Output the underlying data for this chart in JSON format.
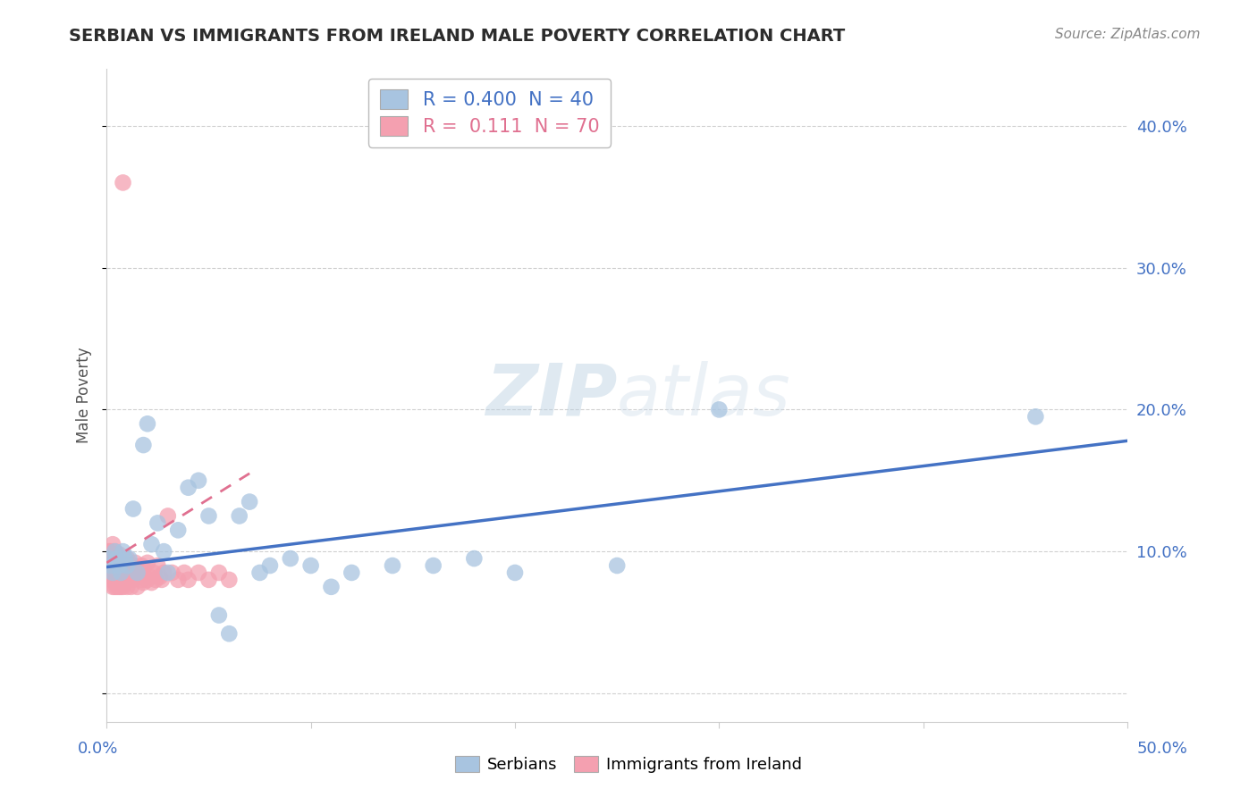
{
  "title": "SERBIAN VS IMMIGRANTS FROM IRELAND MALE POVERTY CORRELATION CHART",
  "source": "Source: ZipAtlas.com",
  "ylabel": "Male Poverty",
  "ytick_values": [
    0.0,
    0.1,
    0.2,
    0.3,
    0.4
  ],
  "ytick_labels": [
    "",
    "10.0%",
    "20.0%",
    "30.0%",
    "40.0%"
  ],
  "xlim": [
    0.0,
    0.5
  ],
  "ylim": [
    -0.02,
    0.44
  ],
  "legend_serbian_R": "0.400",
  "legend_serbian_N": "40",
  "legend_ireland_R": "0.111",
  "legend_ireland_N": "70",
  "serbian_color": "#a8c4e0",
  "ireland_color": "#f4a0b0",
  "serbian_line_color": "#4472c4",
  "ireland_line_color": "#e07090",
  "background_color": "#ffffff",
  "grid_color": "#cccccc",
  "title_color": "#2c2c2c",
  "axis_label_color": "#4472c4",
  "watermark_color": "#ccdaec",
  "serbian_line_x": [
    0.0,
    0.5
  ],
  "serbian_line_y": [
    0.089,
    0.178
  ],
  "ireland_line_x": [
    0.0,
    0.07
  ],
  "ireland_line_y": [
    0.092,
    0.155
  ],
  "serbia_x": [
    0.001,
    0.002,
    0.003,
    0.004,
    0.005,
    0.006,
    0.007,
    0.008,
    0.009,
    0.01,
    0.011,
    0.013,
    0.015,
    0.018,
    0.02,
    0.022,
    0.025,
    0.028,
    0.03,
    0.035,
    0.04,
    0.045,
    0.05,
    0.055,
    0.06,
    0.065,
    0.07,
    0.075,
    0.08,
    0.09,
    0.1,
    0.11,
    0.12,
    0.14,
    0.16,
    0.18,
    0.2,
    0.25,
    0.3,
    0.455
  ],
  "serbia_y": [
    0.095,
    0.09,
    0.085,
    0.1,
    0.095,
    0.09,
    0.085,
    0.1,
    0.095,
    0.09,
    0.095,
    0.13,
    0.085,
    0.175,
    0.19,
    0.105,
    0.12,
    0.1,
    0.085,
    0.115,
    0.145,
    0.15,
    0.125,
    0.055,
    0.042,
    0.125,
    0.135,
    0.085,
    0.09,
    0.095,
    0.09,
    0.075,
    0.085,
    0.09,
    0.09,
    0.095,
    0.085,
    0.09,
    0.2,
    0.195
  ],
  "ireland_x": [
    0.001,
    0.001,
    0.001,
    0.002,
    0.002,
    0.002,
    0.002,
    0.003,
    0.003,
    0.003,
    0.003,
    0.004,
    0.004,
    0.004,
    0.004,
    0.005,
    0.005,
    0.005,
    0.005,
    0.006,
    0.006,
    0.006,
    0.006,
    0.007,
    0.007,
    0.007,
    0.008,
    0.008,
    0.008,
    0.009,
    0.009,
    0.01,
    0.01,
    0.01,
    0.011,
    0.011,
    0.012,
    0.012,
    0.013,
    0.013,
    0.014,
    0.014,
    0.015,
    0.015,
    0.016,
    0.017,
    0.017,
    0.018,
    0.018,
    0.019,
    0.02,
    0.02,
    0.021,
    0.022,
    0.023,
    0.024,
    0.025,
    0.026,
    0.027,
    0.028,
    0.03,
    0.032,
    0.035,
    0.038,
    0.04,
    0.045,
    0.05,
    0.055,
    0.06,
    0.008
  ],
  "ireland_y": [
    0.09,
    0.1,
    0.085,
    0.08,
    0.09,
    0.1,
    0.085,
    0.075,
    0.085,
    0.095,
    0.105,
    0.08,
    0.09,
    0.1,
    0.075,
    0.082,
    0.092,
    0.075,
    0.082,
    0.078,
    0.088,
    0.098,
    0.075,
    0.082,
    0.092,
    0.075,
    0.082,
    0.075,
    0.085,
    0.08,
    0.09,
    0.075,
    0.085,
    0.095,
    0.08,
    0.09,
    0.075,
    0.085,
    0.08,
    0.09,
    0.082,
    0.092,
    0.075,
    0.085,
    0.082,
    0.08,
    0.09,
    0.078,
    0.088,
    0.082,
    0.08,
    0.092,
    0.082,
    0.078,
    0.085,
    0.08,
    0.09,
    0.082,
    0.08,
    0.085,
    0.125,
    0.085,
    0.08,
    0.085,
    0.08,
    0.085,
    0.08,
    0.085,
    0.08,
    0.36
  ]
}
